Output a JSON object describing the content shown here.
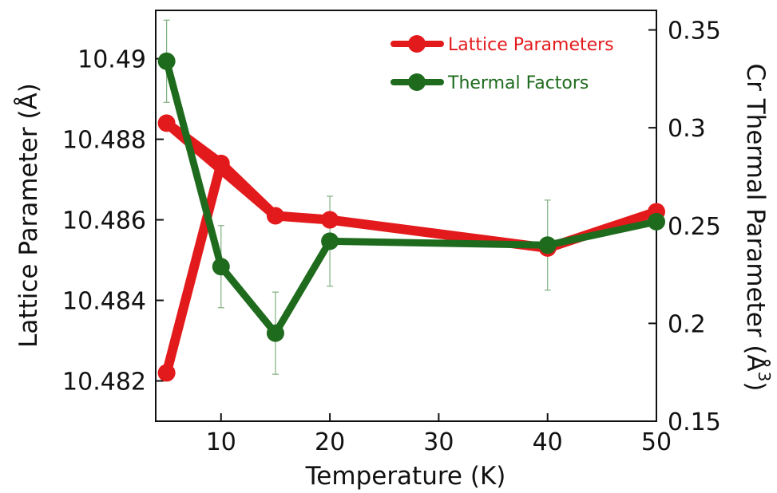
{
  "chart_data": {
    "type": "line",
    "xlabel": "Temperature (K)",
    "ylabel_left": "Lattice Parameter (Å)",
    "ylabel_right": "Cr Thermal Parameter (Å",
    "ylabel_right_sup": "3",
    "ylabel_right_close": ")",
    "xlim": [
      4,
      50
    ],
    "ylim_left": [
      10.481,
      10.4912
    ],
    "ylim_right": [
      0.15,
      0.36
    ],
    "x_ticks": [
      10,
      20,
      30,
      40,
      50
    ],
    "x_tick_labels": [
      "10",
      "20",
      "30",
      "40",
      "50"
    ],
    "y_left_ticks": [
      10.482,
      10.484,
      10.486,
      10.488,
      10.49
    ],
    "y_left_tick_labels": [
      "10.482",
      "10.484",
      "10.486",
      "10.488",
      "10.49"
    ],
    "y_right_ticks": [
      0.15,
      0.2,
      0.25,
      0.3,
      0.35
    ],
    "y_right_tick_labels": [
      "0.15",
      "0.2",
      "0.25",
      "0.3",
      "0.35"
    ],
    "legend_position": "top-right",
    "series": [
      {
        "name": "Lattice Parameters",
        "axis": "left",
        "color": "#e31a1c",
        "x": [
          5,
          5,
          10,
          15,
          20,
          40,
          50
        ],
        "y": [
          10.4822,
          10.4884,
          10.4874,
          10.4861,
          10.486,
          10.4853,
          10.4862
        ],
        "path_order": [
          0,
          2,
          3,
          1,
          2,
          3,
          4,
          5,
          6
        ]
      },
      {
        "name": "Thermal Factors",
        "axis": "right",
        "color": "#1e6b1e",
        "x": [
          5,
          10,
          15,
          20,
          40,
          50
        ],
        "y": [
          0.334,
          0.229,
          0.195,
          0.242,
          0.24,
          0.252
        ],
        "yerr": [
          0.021,
          0.021,
          0.021,
          0.023,
          0.023,
          0.0
        ]
      }
    ]
  }
}
